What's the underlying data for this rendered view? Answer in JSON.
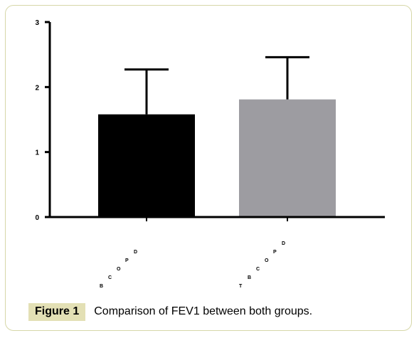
{
  "figure": {
    "label": "Figure 1",
    "caption": "Comparison of FEV1 between both groups."
  },
  "chart_data": {
    "type": "bar",
    "categories": [
      "BCOPD",
      "TBCOPD"
    ],
    "series": [
      {
        "values": [
          1.58,
          1.81
        ],
        "errors": [
          0.69,
          0.65
        ],
        "colors": [
          "#000000",
          "#9d9ca1"
        ]
      }
    ],
    "ylim": [
      0,
      3
    ],
    "yticks": [
      0,
      1,
      2,
      3
    ],
    "title": "",
    "xlabel": "",
    "ylabel": "",
    "grid": false
  }
}
